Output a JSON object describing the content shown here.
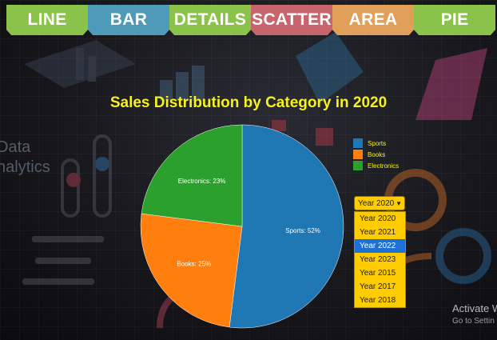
{
  "tabs": [
    {
      "label": "LINE",
      "color": "#8bc34a"
    },
    {
      "label": "BAR",
      "color": "#4e9ab8"
    },
    {
      "label": "DETAILS",
      "color": "#8bc34a"
    },
    {
      "label": "SCATTER",
      "color": "#c8646b"
    },
    {
      "label": "AREA",
      "color": "#e0a05a"
    },
    {
      "label": "PIE",
      "color": "#8bc34a"
    }
  ],
  "year_select": {
    "selected": "Year 2020",
    "options": [
      "Year 2020",
      "Year 2021",
      "Year 2022",
      "Year 2023",
      "Year 2015",
      "Year 2017",
      "Year 2018"
    ],
    "highlighted": "Year 2022"
  },
  "chart_data": {
    "type": "pie",
    "title": "Sales Distribution by Category in 2020",
    "labels": [
      "Sports",
      "Books",
      "Electronics"
    ],
    "values": [
      52,
      25,
      23
    ],
    "slice_labels": [
      "Sports: 52%",
      "Books: 25%",
      "Electronics: 23%"
    ],
    "colors": [
      "#1f77b4",
      "#ff7f0e",
      "#2ca02c"
    ],
    "legend_position": "right"
  },
  "watermark": {
    "line1": "Activate W",
    "line2": "Go to Settin"
  }
}
